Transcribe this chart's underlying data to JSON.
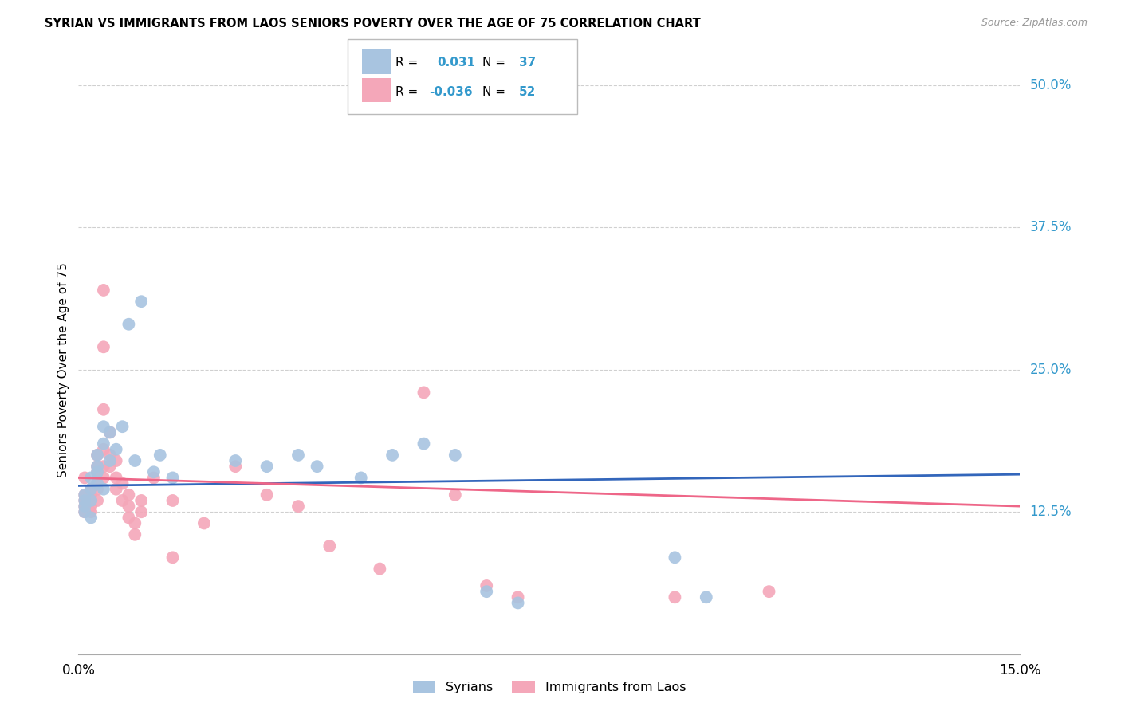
{
  "title": "SYRIAN VS IMMIGRANTS FROM LAOS SENIORS POVERTY OVER THE AGE OF 75 CORRELATION CHART",
  "source": "Source: ZipAtlas.com",
  "ylabel": "Seniors Poverty Over the Age of 75",
  "xlim": [
    0.0,
    0.15
  ],
  "ylim": [
    0.0,
    0.5
  ],
  "ytick_positions_right": [
    0.5,
    0.375,
    0.25,
    0.125
  ],
  "ytick_labels_right": [
    "50.0%",
    "37.5%",
    "25.0%",
    "12.5%"
  ],
  "background_color": "#ffffff",
  "grid_color": "#d0d0d0",
  "legend_R_syrian": "0.031",
  "legend_N_syrian": "37",
  "legend_R_laos": "-0.036",
  "legend_N_laos": "52",
  "syrian_color": "#a8c4e0",
  "laos_color": "#f4a7b9",
  "syrian_line_color": "#3366bb",
  "laos_line_color": "#ee6688",
  "syrian_points": [
    [
      0.001,
      0.135
    ],
    [
      0.001,
      0.14
    ],
    [
      0.001,
      0.13
    ],
    [
      0.001,
      0.125
    ],
    [
      0.002,
      0.155
    ],
    [
      0.002,
      0.145
    ],
    [
      0.002,
      0.135
    ],
    [
      0.002,
      0.12
    ],
    [
      0.003,
      0.175
    ],
    [
      0.003,
      0.165
    ],
    [
      0.003,
      0.16
    ],
    [
      0.003,
      0.15
    ],
    [
      0.004,
      0.2
    ],
    [
      0.004,
      0.185
    ],
    [
      0.004,
      0.145
    ],
    [
      0.005,
      0.195
    ],
    [
      0.005,
      0.17
    ],
    [
      0.006,
      0.18
    ],
    [
      0.007,
      0.2
    ],
    [
      0.008,
      0.29
    ],
    [
      0.009,
      0.17
    ],
    [
      0.01,
      0.31
    ],
    [
      0.012,
      0.16
    ],
    [
      0.013,
      0.175
    ],
    [
      0.015,
      0.155
    ],
    [
      0.025,
      0.17
    ],
    [
      0.03,
      0.165
    ],
    [
      0.035,
      0.175
    ],
    [
      0.038,
      0.165
    ],
    [
      0.045,
      0.155
    ],
    [
      0.05,
      0.175
    ],
    [
      0.055,
      0.185
    ],
    [
      0.06,
      0.175
    ],
    [
      0.065,
      0.055
    ],
    [
      0.07,
      0.045
    ],
    [
      0.095,
      0.085
    ],
    [
      0.1,
      0.05
    ]
  ],
  "laos_points": [
    [
      0.001,
      0.14
    ],
    [
      0.001,
      0.135
    ],
    [
      0.001,
      0.13
    ],
    [
      0.001,
      0.125
    ],
    [
      0.001,
      0.155
    ],
    [
      0.002,
      0.145
    ],
    [
      0.002,
      0.14
    ],
    [
      0.002,
      0.135
    ],
    [
      0.002,
      0.13
    ],
    [
      0.002,
      0.125
    ],
    [
      0.003,
      0.175
    ],
    [
      0.003,
      0.165
    ],
    [
      0.003,
      0.16
    ],
    [
      0.003,
      0.15
    ],
    [
      0.003,
      0.145
    ],
    [
      0.003,
      0.135
    ],
    [
      0.004,
      0.32
    ],
    [
      0.004,
      0.27
    ],
    [
      0.004,
      0.215
    ],
    [
      0.004,
      0.18
    ],
    [
      0.004,
      0.165
    ],
    [
      0.004,
      0.155
    ],
    [
      0.005,
      0.195
    ],
    [
      0.005,
      0.175
    ],
    [
      0.005,
      0.165
    ],
    [
      0.006,
      0.17
    ],
    [
      0.006,
      0.155
    ],
    [
      0.006,
      0.145
    ],
    [
      0.007,
      0.15
    ],
    [
      0.007,
      0.135
    ],
    [
      0.008,
      0.14
    ],
    [
      0.008,
      0.13
    ],
    [
      0.008,
      0.12
    ],
    [
      0.009,
      0.115
    ],
    [
      0.009,
      0.105
    ],
    [
      0.01,
      0.135
    ],
    [
      0.01,
      0.125
    ],
    [
      0.012,
      0.155
    ],
    [
      0.015,
      0.135
    ],
    [
      0.015,
      0.085
    ],
    [
      0.02,
      0.115
    ],
    [
      0.025,
      0.165
    ],
    [
      0.03,
      0.14
    ],
    [
      0.035,
      0.13
    ],
    [
      0.04,
      0.095
    ],
    [
      0.048,
      0.075
    ],
    [
      0.055,
      0.23
    ],
    [
      0.06,
      0.14
    ],
    [
      0.065,
      0.06
    ],
    [
      0.07,
      0.05
    ],
    [
      0.095,
      0.05
    ],
    [
      0.11,
      0.055
    ]
  ]
}
